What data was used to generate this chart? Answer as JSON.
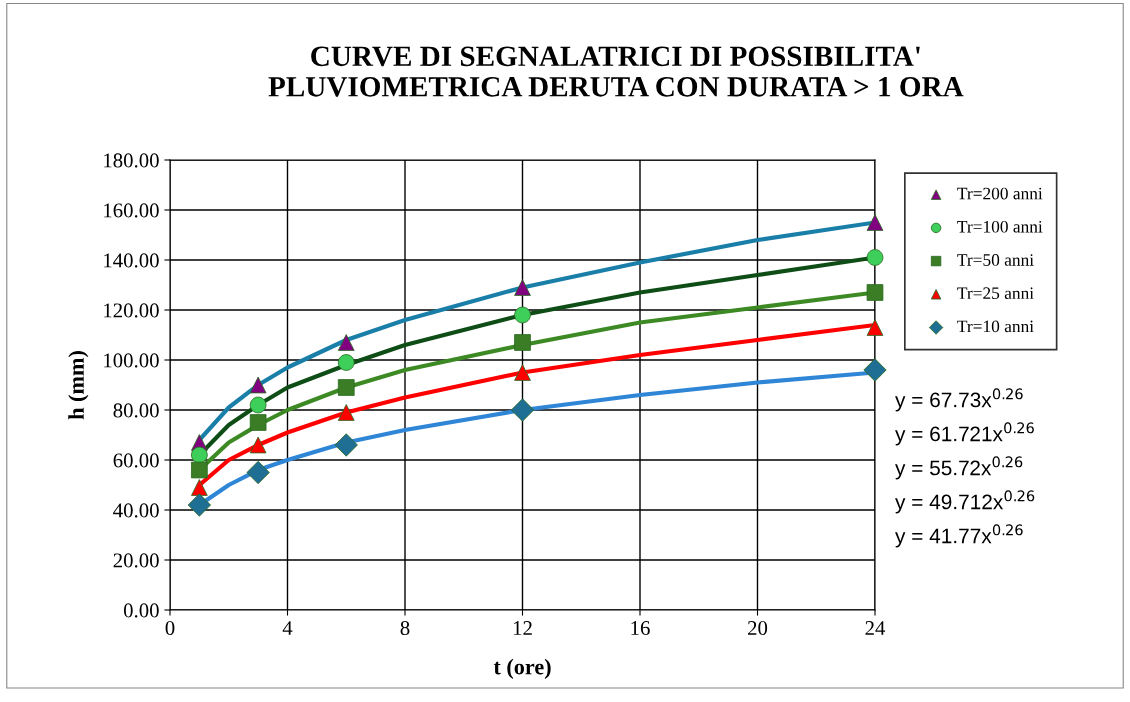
{
  "chart_data": {
    "type": "scatter",
    "title": "CURVE DI SEGNALATRICI DI POSSIBILITA'\nPLUVIOMETRICA DERUTA CON DURATA > 1 ORA",
    "xlabel": "t (ore)",
    "ylabel": "h (mm)",
    "xlim": [
      0,
      24
    ],
    "xticks": [
      0,
      4,
      8,
      12,
      16,
      20,
      24
    ],
    "ylim": [
      0,
      180
    ],
    "yticks": [
      {
        "value": 0,
        "label": "0.00"
      },
      {
        "value": 20,
        "label": "20.00"
      },
      {
        "value": 40,
        "label": "40.00"
      },
      {
        "value": 60,
        "label": "60.00"
      },
      {
        "value": 80,
        "label": "80.00"
      },
      {
        "value": 100,
        "label": "100.00"
      },
      {
        "value": 120,
        "label": "120.00"
      },
      {
        "value": 140,
        "label": "140.00"
      },
      {
        "value": 160,
        "label": "160.00"
      },
      {
        "value": 180,
        "label": "180.00"
      }
    ],
    "grid": true,
    "legend": "right",
    "series": [
      {
        "type": "line",
        "color": "#1a7fa8",
        "marker": "none",
        "x": [
          1,
          2,
          3,
          4,
          6,
          8,
          12,
          16,
          20,
          24
        ],
        "values": [
          68,
          81,
          90,
          97,
          108,
          116,
          129,
          139,
          148,
          155
        ]
      },
      {
        "type": "line",
        "color": "#0f4d17",
        "marker": "none",
        "x": [
          1,
          2,
          3,
          4,
          6,
          8,
          12,
          16,
          20,
          24
        ],
        "values": [
          62,
          74,
          82,
          89,
          98,
          106,
          118,
          127,
          134,
          141
        ]
      },
      {
        "type": "line",
        "color": "#3d8a25",
        "marker": "none",
        "x": [
          1,
          2,
          3,
          4,
          6,
          8,
          12,
          16,
          20,
          24
        ],
        "values": [
          56,
          67,
          74,
          80,
          89,
          96,
          106,
          115,
          121,
          127
        ]
      },
      {
        "type": "line",
        "color": "#ff0000",
        "marker": "none",
        "x": [
          1,
          2,
          3,
          4,
          6,
          8,
          12,
          16,
          20,
          24
        ],
        "values": [
          50,
          60,
          66,
          71,
          79,
          85,
          95,
          102,
          108,
          114
        ]
      },
      {
        "type": "line",
        "color": "#2f86d6",
        "marker": "none",
        "x": [
          1,
          2,
          3,
          4,
          6,
          8,
          12,
          16,
          20,
          24
        ],
        "values": [
          42,
          50,
          56,
          60,
          67,
          72,
          80,
          86,
          91,
          95
        ]
      },
      {
        "name": "Tr=200 anni",
        "color": "#800080",
        "marker": "triangle",
        "x": [
          1,
          3,
          6,
          12,
          24
        ],
        "values": [
          67,
          90,
          107,
          129,
          155
        ]
      },
      {
        "name": "Tr=100 anni",
        "color": "#3ecf5a",
        "marker": "circle",
        "x": [
          1,
          3,
          6,
          12,
          24
        ],
        "values": [
          62,
          82,
          99,
          118,
          141
        ]
      },
      {
        "name": "Tr=50 anni",
        "color": "#3a7d25",
        "marker": "square",
        "x": [
          1,
          3,
          6,
          12,
          24
        ],
        "values": [
          56,
          75,
          89,
          107,
          127
        ]
      },
      {
        "name": "Tr=25 anni",
        "color": "#ff0000",
        "marker": "triangle",
        "x": [
          1,
          3,
          6,
          12,
          24
        ],
        "values": [
          49,
          66,
          79,
          95,
          113
        ]
      },
      {
        "name": "Tr=10 anni",
        "color": "#1f6e94",
        "marker": "diamond",
        "x": [
          1,
          3,
          6,
          12,
          24
        ],
        "values": [
          42,
          55,
          66,
          80,
          96
        ]
      }
    ],
    "annotations": [
      "y = 67.73x$^{0.26}$",
      "y = 61.721x$^{0.26}$",
      "y = 55.72x$^{0.26}$",
      "y = 49.712x$^{0.26}$",
      "y = 41.77x$^{0.26}$"
    ]
  }
}
